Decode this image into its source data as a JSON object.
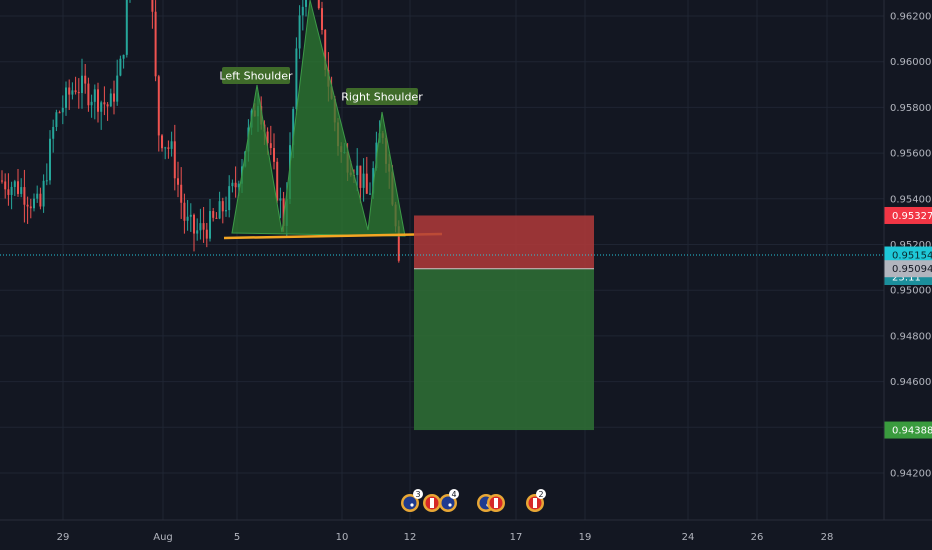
{
  "chart_data": {
    "type": "candlestick",
    "symbol_context": "forex",
    "y_axis": {
      "ticks": [
        "0.94200",
        "0.94400",
        "0.94600",
        "0.94800",
        "0.95000",
        "0.95200",
        "0.95400",
        "0.95600",
        "0.95800",
        "0.96000",
        "0.96200"
      ],
      "range": [
        0.9402,
        0.9632
      ],
      "position": "right"
    },
    "x_axis": {
      "ticks": [
        "29",
        "Aug",
        "5",
        "10",
        "12",
        "17",
        "19",
        "24",
        "26",
        "28"
      ]
    },
    "price_tags": {
      "stop": "0.95327",
      "current": "0.95154",
      "countdown": "23:11",
      "entry": "0.95094",
      "target": "0.94388"
    },
    "colors": {
      "background": "#131722",
      "grid": "#1f2533",
      "bull": "#26a69a",
      "bear": "#ef5350",
      "pattern_fill": "#2e7d32",
      "neckline": "#f5a623",
      "stop_zone": "#b23a3a",
      "target_zone": "#2e6b34",
      "current_price": "#26c6da",
      "stop_tag": "#f23645",
      "current_tag": "#1ec8d8",
      "entry_tag": "#b2b5be",
      "target_tag": "#3a9b3e"
    },
    "annotations": [
      {
        "text": "Left Shoulder"
      },
      {
        "text": "Right Shoulder"
      }
    ],
    "pattern": {
      "type": "head-and-shoulders",
      "vertices": [
        [
          "29",
          0.952
        ],
        [
          "Aug",
          0.9588
        ],
        [
          "Aug",
          0.9528
        ],
        [
          "10",
          0.964
        ],
        [
          "10",
          0.952
        ],
        [
          "10",
          0.958
        ],
        [
          "12",
          0.952
        ]
      ]
    },
    "neckline": [
      [
        0.9525
      ],
      [
        0.9525
      ]
    ],
    "position": {
      "type": "short",
      "entry": 0.95094,
      "stop": 0.95327,
      "target": 0.94388
    },
    "event_markers": [
      {
        "flags": [
          "AU",
          "CA"
        ],
        "count": "3"
      },
      {
        "flags": [
          "AU"
        ],
        "count": "4"
      },
      {
        "flags": [
          "AU",
          "CA"
        ],
        "count": ""
      },
      {
        "flags": [
          "CA"
        ],
        "count": "2"
      }
    ]
  }
}
